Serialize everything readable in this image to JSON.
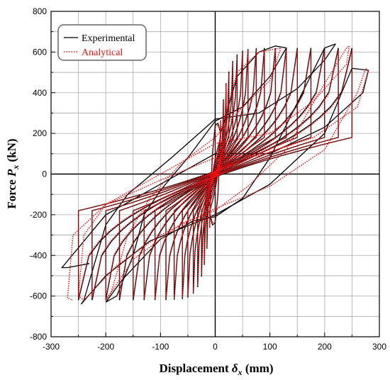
{
  "chart_data": {
    "type": "line",
    "title": "",
    "xlabel": {
      "prefix": "Displacement ",
      "symbol": "δ",
      "sub": "x",
      "suffix": " (mm)"
    },
    "ylabel": {
      "prefix": "Force ",
      "symbol": "P",
      "sub": "x",
      "suffix": " (kN)"
    },
    "xlim": [
      -300,
      300
    ],
    "ylim": [
      -800,
      800
    ],
    "xticks": [
      -300,
      -200,
      -100,
      0,
      100,
      200,
      300
    ],
    "yticks": [
      -800,
      -600,
      -400,
      -200,
      0,
      200,
      400,
      600,
      800
    ],
    "xtick_labels": [
      "-300",
      "-200",
      "-100",
      "0",
      "100",
      "200",
      "300"
    ],
    "ytick_labels": [
      "-800",
      "-600",
      "-400",
      "-200",
      "0",
      "200",
      "400",
      "600",
      "800"
    ],
    "grid": true,
    "legend_position": "top-left",
    "series": [
      {
        "name": "Experimental",
        "color": "#000000",
        "style": "solid",
        "amplitudes": [
          10,
          15,
          20,
          25,
          32,
          40,
          50,
          60,
          75,
          90,
          110,
          130,
          150,
          175,
          200,
          225,
          250
        ],
        "cycles": [
          [
            [
              0,
              0
            ],
            [
              5,
              80
            ],
            [
              10,
              200
            ],
            [
              5,
              250
            ],
            [
              0,
              240
            ],
            [
              -5,
              100
            ],
            [
              -10,
              -200
            ],
            [
              -5,
              -250
            ],
            [
              0,
              -240
            ],
            [
              5,
              -100
            ],
            [
              10,
              200
            ]
          ],
          [
            [
              10,
              200
            ],
            [
              40,
              480
            ],
            [
              80,
              600
            ],
            [
              110,
              630
            ],
            [
              130,
              620
            ],
            [
              100,
              480
            ],
            [
              50,
              330
            ],
            [
              0,
              260
            ],
            [
              -50,
              80
            ],
            [
              -100,
              -80
            ],
            [
              -130,
              -200
            ],
            [
              -150,
              -400
            ],
            [
              -180,
              -600
            ],
            [
              -200,
              -630
            ],
            [
              -170,
              -520
            ],
            [
              -100,
              -320
            ],
            [
              -40,
              -230
            ],
            [
              0,
              -210
            ],
            [
              50,
              -120
            ],
            [
              100,
              80
            ],
            [
              150,
              350
            ],
            [
              200,
              620
            ],
            [
              220,
              640
            ]
          ],
          [
            [
              220,
              640
            ],
            [
              200,
              560
            ],
            [
              150,
              420
            ],
            [
              80,
              300
            ],
            [
              0,
              270
            ],
            [
              -80,
              80
            ],
            [
              -160,
              -100
            ],
            [
              -200,
              -250
            ],
            [
              -240,
              -620
            ],
            [
              -245,
              -640
            ],
            [
              -200,
              -500
            ],
            [
              -120,
              -330
            ],
            [
              0,
              -200
            ],
            [
              100,
              -50
            ],
            [
              200,
              200
            ],
            [
              250,
              520
            ],
            [
              280,
              510
            ],
            [
              270,
              400
            ],
            [
              200,
              230
            ],
            [
              100,
              100
            ],
            [
              0,
              100
            ],
            [
              -100,
              -50
            ],
            [
              -200,
              -200
            ],
            [
              -280,
              -460
            ],
            [
              -270,
              -460
            ],
            [
              -230,
              -440
            ]
          ]
        ]
      },
      {
        "name": "Analytical",
        "color": "#ee1111",
        "style": "dotted",
        "amplitudes": [
          10,
          15,
          20,
          25,
          32,
          40,
          50,
          60,
          75,
          90,
          110,
          130,
          150,
          175,
          200,
          225,
          250
        ],
        "cycles": [
          [
            [
              0,
              0
            ],
            [
              5,
              100
            ],
            [
              10,
              210
            ],
            [
              5,
              240
            ],
            [
              0,
              230
            ],
            [
              -5,
              90
            ],
            [
              -10,
              -190
            ],
            [
              -5,
              -240
            ],
            [
              0,
              -230
            ],
            [
              5,
              -90
            ],
            [
              10,
              210
            ]
          ],
          [
            [
              10,
              210
            ],
            [
              40,
              500
            ],
            [
              80,
              600
            ],
            [
              120,
              620
            ],
            [
              100,
              460
            ],
            [
              40,
              300
            ],
            [
              0,
              180
            ],
            [
              -60,
              60
            ],
            [
              -120,
              -120
            ],
            [
              -160,
              -300
            ],
            [
              -190,
              -580
            ],
            [
              -200,
              -620
            ],
            [
              -150,
              -420
            ],
            [
              -60,
              -240
            ],
            [
              0,
              -180
            ],
            [
              60,
              -60
            ],
            [
              130,
              120
            ],
            [
              190,
              400
            ],
            [
              240,
              620
            ],
            [
              245,
              630
            ]
          ],
          [
            [
              245,
              630
            ],
            [
              240,
              540
            ],
            [
              180,
              360
            ],
            [
              100,
              200
            ],
            [
              0,
              150
            ],
            [
              -100,
              0
            ],
            [
              -200,
              -150
            ],
            [
              -240,
              -300
            ],
            [
              -250,
              -600
            ],
            [
              -240,
              -620
            ],
            [
              -180,
              -450
            ],
            [
              -100,
              -300
            ],
            [
              0,
              -170
            ],
            [
              100,
              -60
            ],
            [
              200,
              120
            ],
            [
              260,
              400
            ],
            [
              275,
              520
            ],
            [
              280,
              510
            ],
            [
              260,
              330
            ],
            [
              180,
              180
            ],
            [
              80,
              90
            ],
            [
              0,
              80
            ],
            [
              -100,
              -30
            ],
            [
              -200,
              -150
            ],
            [
              -260,
              -300
            ],
            [
              -270,
              -610
            ],
            [
              -260,
              -620
            ]
          ]
        ]
      }
    ]
  },
  "legend": {
    "items": [
      {
        "label": "Experimental",
        "color": "#000000",
        "style": "solid"
      },
      {
        "label": "Analytical",
        "color": "#ee1111",
        "style": "dotted"
      }
    ]
  }
}
